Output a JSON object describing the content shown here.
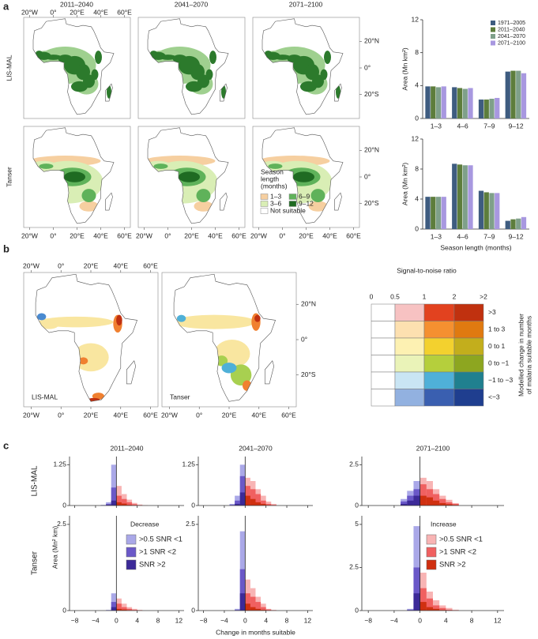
{
  "panel_labels": [
    "a",
    "b",
    "c"
  ],
  "maps": {
    "xticks": [
      {
        "value": -20,
        "label": "20°W"
      },
      {
        "value": 0,
        "label": "0°"
      },
      {
        "value": 20,
        "label": "20°E"
      },
      {
        "value": 40,
        "label": "40°E"
      },
      {
        "value": 60,
        "label": "60°E"
      }
    ],
    "yticks": [
      {
        "value": 20,
        "label": "20°N"
      },
      {
        "value": 0,
        "label": "0°"
      },
      {
        "value": -20,
        "label": "20°S"
      }
    ],
    "a": {
      "columns": [
        "2011–2040",
        "2041–2070",
        "2071–2100"
      ],
      "rows": [
        "LIS-MAL",
        "Tanser"
      ],
      "legend": {
        "title": [
          "Season",
          "length",
          "(months)"
        ],
        "items": [
          {
            "label": "1–3",
            "color": "#f6cfa0"
          },
          {
            "label": "3–6",
            "color": "#d9eeb5"
          },
          {
            "label": "6–9",
            "color": "#5fb25a"
          },
          {
            "label": "9–12",
            "color": "#1f6b22"
          },
          {
            "label": "Not suitable",
            "color": "#ffffff"
          }
        ]
      }
    },
    "b": {
      "labels": [
        "LIS-MAL",
        "Tanser"
      ]
    }
  },
  "chart_data": [
    {
      "type": "bar",
      "categories": [
        "1–3",
        "4–6",
        "7–9",
        "9–12"
      ],
      "ylim": [
        0,
        12
      ],
      "yticks": [
        0,
        4,
        8,
        12
      ],
      "ylabel": "Area (Mn km²)",
      "series": [
        {
          "name": "1971–2005",
          "color": "#3e5c80",
          "values": [
            3.9,
            3.8,
            2.3,
            5.7
          ]
        },
        {
          "name": "2011–2040",
          "color": "#5d7d3c",
          "values": [
            3.9,
            3.7,
            2.3,
            5.8
          ]
        },
        {
          "name": "2041–2070",
          "color": "#7fa08a",
          "values": [
            3.8,
            3.6,
            2.4,
            5.8
          ]
        },
        {
          "name": "2071–2100",
          "color": "#a898e0",
          "values": [
            3.9,
            3.7,
            2.5,
            5.5
          ]
        }
      ]
    },
    {
      "type": "bar",
      "categories": [
        "1–3",
        "4–6",
        "7–9",
        "9–12"
      ],
      "ylim": [
        0,
        12
      ],
      "yticks": [
        0,
        4,
        8,
        12
      ],
      "ylabel": "Area (Mn km²)",
      "xlabel": "Season length (months)",
      "series": [
        {
          "color": "#3e5c80",
          "values": [
            4.3,
            8.7,
            5.1,
            1.1
          ]
        },
        {
          "color": "#5d7d3c",
          "values": [
            4.3,
            8.6,
            4.9,
            1.3
          ]
        },
        {
          "color": "#7fa08a",
          "values": [
            4.3,
            8.5,
            4.8,
            1.4
          ]
        },
        {
          "color": "#a898e0",
          "values": [
            4.3,
            8.5,
            4.8,
            1.6
          ]
        }
      ]
    },
    {
      "type": "heatmap",
      "title": "Signal-to-noise ratio",
      "column_labels": [
        "0",
        "0.5",
        "1",
        "2",
        ">2"
      ],
      "row_labels": [
        ">3",
        "1 to 3",
        "0 to 1",
        "0 to −1",
        "−1 to −3",
        "<−3"
      ],
      "colors": [
        [
          "#ffffff",
          "#f7c2c2",
          "#e2421f",
          "#c0310f"
        ],
        [
          "#ffffff",
          "#fde0b0",
          "#f59030",
          "#e07a10"
        ],
        [
          "#ffffff",
          "#fdf1b2",
          "#f3d12e",
          "#c3ae1c"
        ],
        [
          "#ffffff",
          "#eaf3b8",
          "#b5cf3c",
          "#8da620"
        ],
        [
          "#ffffff",
          "#c9e5f4",
          "#4fb0d8",
          "#20808f"
        ],
        [
          "#ffffff",
          "#92b1e0",
          "#3a5fb0",
          "#1f3e8f"
        ]
      ],
      "ylabel": [
        "Modelled change in number",
        "of malaria suitable months"
      ]
    },
    {
      "type": "histogram",
      "title": "2011–2040",
      "row_label": "LIS-MAL",
      "ylim": [
        0,
        1.5
      ],
      "yticks": [
        0,
        1.25
      ],
      "xlim": [
        -9,
        13
      ],
      "xticks": [
        {
          "value": -8,
          "label": "−8"
        },
        {
          "value": -4,
          "label": "−4"
        },
        0,
        4,
        8,
        12
      ],
      "decrease": {
        "bins": [
          -3,
          -2,
          -1,
          0
        ],
        "series": [
          {
            "color": "#aaa8e8",
            "values": [
              0.02,
              0.1,
              1.25
            ]
          },
          {
            "color": "#6a58c8",
            "values": [
              0,
              0.05,
              0.55
            ]
          },
          {
            "color": "#3c2a98",
            "values": [
              0,
              0.02,
              0.15
            ]
          }
        ]
      },
      "increase": {
        "bins": [
          0,
          1,
          2,
          3,
          4,
          5,
          6
        ],
        "series": [
          {
            "color": "#f8b4b4",
            "values": [
              0.6,
              0.35,
              0.18,
              0.08,
              0.03,
              0.01
            ]
          },
          {
            "color": "#f06060",
            "values": [
              0.3,
              0.2,
              0.1,
              0.04,
              0.01,
              0
            ]
          },
          {
            "color": "#d03010",
            "values": [
              0.1,
              0.06,
              0.02,
              0,
              0,
              0
            ]
          }
        ]
      }
    },
    {
      "type": "histogram",
      "title": "2041–2070",
      "ylim": [
        0,
        1.5
      ],
      "yticks": [
        0,
        1.25
      ],
      "xlim": [
        -9,
        13
      ],
      "xticks": [
        {
          "value": -8,
          "label": "−8"
        },
        {
          "value": -4,
          "label": "−4"
        },
        0,
        4,
        8,
        12
      ],
      "decrease": {
        "bins": [
          -3,
          -2,
          -1,
          0
        ],
        "series": [
          {
            "color": "#aaa8e8",
            "values": [
              0.05,
              0.3,
              1.25
            ]
          },
          {
            "color": "#6a58c8",
            "values": [
              0.02,
              0.15,
              0.9
            ]
          },
          {
            "color": "#3c2a98",
            "values": [
              0,
              0.05,
              0.4
            ]
          }
        ]
      },
      "increase": {
        "bins": [
          0,
          1,
          2,
          3,
          4,
          5,
          6
        ],
        "series": [
          {
            "color": "#f8b4b4",
            "values": [
              0.85,
              0.75,
              0.5,
              0.3,
              0.12,
              0.05
            ]
          },
          {
            "color": "#f06060",
            "values": [
              0.6,
              0.5,
              0.35,
              0.15,
              0.05,
              0.02
            ]
          },
          {
            "color": "#d03010",
            "values": [
              0.3,
              0.2,
              0.1,
              0.05,
              0.01,
              0
            ]
          }
        ]
      }
    },
    {
      "type": "histogram",
      "title": "2071–2100",
      "ylim": [
        0,
        3
      ],
      "yticks": [
        0,
        2.5
      ],
      "xlim": [
        -9,
        13
      ],
      "xticks": [
        {
          "value": -8,
          "label": "−8"
        },
        {
          "value": -4,
          "label": "−4"
        },
        0,
        4,
        8,
        12
      ],
      "decrease": {
        "bins": [
          -3,
          -2,
          -1,
          0
        ],
        "series": [
          {
            "color": "#aaa8e8",
            "values": [
              0.4,
              0.9,
              1.5
            ]
          },
          {
            "color": "#6a58c8",
            "values": [
              0.25,
              0.6,
              1.0
            ]
          },
          {
            "color": "#3c2a98",
            "values": [
              0.1,
              0.3,
              0.6
            ]
          }
        ]
      },
      "increase": {
        "bins": [
          0,
          1,
          2,
          3,
          4,
          5,
          6
        ],
        "series": [
          {
            "color": "#f8b4b4",
            "values": [
              1.7,
              1.5,
              1.0,
              0.6,
              0.35,
              0.15
            ]
          },
          {
            "color": "#f06060",
            "values": [
              1.3,
              1.0,
              0.7,
              0.4,
              0.2,
              0.1
            ]
          },
          {
            "color": "#d03010",
            "values": [
              0.6,
              0.5,
              0.3,
              0.15,
              0.08,
              0.03
            ]
          }
        ]
      }
    },
    {
      "type": "histogram",
      "row_label": "Tanser",
      "ylabel": "Area (Mn² km)",
      "ylim": [
        0,
        2.75
      ],
      "yticks": [
        0,
        2.5
      ],
      "xlim": [
        -9,
        13
      ],
      "xticks": [
        {
          "value": -8,
          "label": "−8"
        },
        {
          "value": -4,
          "label": "−4"
        },
        0,
        4,
        8,
        12
      ],
      "decrease": {
        "bins": [
          -3,
          -2,
          -1,
          0
        ],
        "legend_title": "Decrease",
        "series": [
          {
            "name": ">0.5 SNR <1",
            "color": "#aaa8e8",
            "values": [
              0,
              0.02,
              0.5
            ]
          },
          {
            "name": ">1 SNR <2",
            "color": "#6a58c8",
            "values": [
              0,
              0,
              0.25
            ]
          },
          {
            "name": "SNR >2",
            "color": "#3c2a98",
            "values": [
              0,
              0,
              0.1
            ]
          }
        ]
      },
      "increase": {
        "bins": [
          0,
          1,
          2,
          3,
          4,
          5,
          6
        ],
        "series": [
          {
            "color": "#f8b4b4",
            "values": [
              0.35,
              0.2,
              0.1,
              0.05,
              0.02,
              0
            ]
          },
          {
            "color": "#f06060",
            "values": [
              0.2,
              0.1,
              0.05,
              0.02,
              0,
              0
            ]
          },
          {
            "color": "#d03010",
            "values": [
              0.05,
              0.03,
              0.01,
              0,
              0,
              0
            ]
          }
        ]
      }
    },
    {
      "type": "histogram",
      "xlabel": "Change in months suitable",
      "ylim": [
        0,
        2.75
      ],
      "yticks": [
        0,
        2.5
      ],
      "xlim": [
        -9,
        13
      ],
      "xticks": [
        {
          "value": -8,
          "label": "−8"
        },
        {
          "value": -4,
          "label": "−4"
        },
        0,
        4,
        8,
        12
      ],
      "decrease": {
        "bins": [
          -3,
          -2,
          -1,
          0
        ],
        "series": [
          {
            "color": "#aaa8e8",
            "values": [
              0,
              0.05,
              2.3
            ]
          },
          {
            "color": "#6a58c8",
            "values": [
              0,
              0.02,
              1.2
            ]
          },
          {
            "color": "#3c2a98",
            "values": [
              0,
              0,
              0.5
            ]
          }
        ]
      },
      "increase": {
        "bins": [
          0,
          1,
          2,
          3,
          4,
          5,
          6
        ],
        "series": [
          {
            "color": "#f8b4b4",
            "values": [
              0.9,
              0.65,
              0.4,
              0.2,
              0.05,
              0.02
            ]
          },
          {
            "color": "#f06060",
            "values": [
              0.5,
              0.4,
              0.25,
              0.1,
              0.03,
              0
            ]
          },
          {
            "color": "#d03010",
            "values": [
              0.2,
              0.1,
              0.05,
              0.02,
              0,
              0
            ]
          }
        ]
      }
    },
    {
      "type": "histogram",
      "ylim": [
        0,
        5.5
      ],
      "yticks": [
        0,
        2.5,
        5.0
      ],
      "xlim": [
        -9,
        13
      ],
      "xticks": [
        {
          "value": -8,
          "label": "−8"
        },
        {
          "value": -4,
          "label": "−4"
        },
        0,
        4,
        8,
        12
      ],
      "decrease": {
        "bins": [
          -3,
          -2,
          -1,
          0
        ],
        "series": [
          {
            "color": "#aaa8e8",
            "values": [
              0,
              0.1,
              4.9
            ]
          },
          {
            "color": "#6a58c8",
            "values": [
              0,
              0.05,
              2.5
            ]
          },
          {
            "color": "#3c2a98",
            "values": [
              0,
              0,
              1.0
            ]
          }
        ]
      },
      "increase": {
        "bins": [
          0,
          1,
          2,
          3,
          4,
          5,
          6
        ],
        "legend_title": "Increase",
        "series": [
          {
            "name": ">0.5 SNR <1",
            "color": "#f8b4b4",
            "values": [
              2.2,
              1.1,
              0.6,
              0.3,
              0.15,
              0.05
            ]
          },
          {
            "name": ">1 SNR <2",
            "color": "#f06060",
            "values": [
              1.3,
              0.7,
              0.3,
              0.15,
              0.05,
              0
            ]
          },
          {
            "name": "SNR >2",
            "color": "#d03010",
            "values": [
              0.5,
              0.2,
              0.1,
              0.03,
              0,
              0
            ]
          }
        ]
      }
    }
  ]
}
